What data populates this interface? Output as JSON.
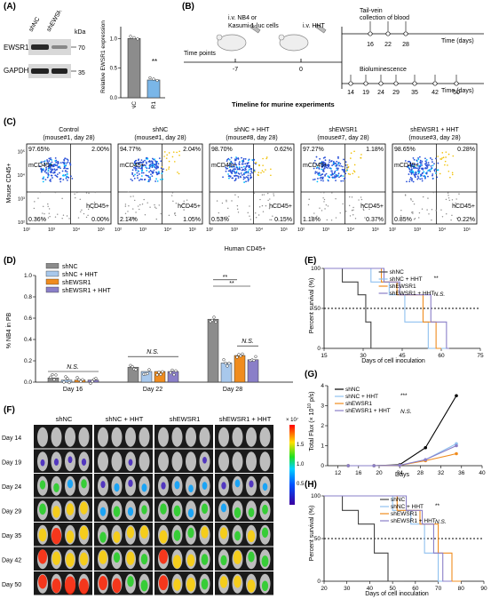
{
  "panel_labels": [
    "(A)",
    "(B)",
    "(C)",
    "(D)",
    "(E)",
    "(F)",
    "(G)",
    "(H)"
  ],
  "panelA": {
    "lanes": [
      "shNC",
      "shEWSR1"
    ],
    "kda_label": "kDa",
    "bands": [
      {
        "name": "EWSR1",
        "kda": "70"
      },
      {
        "name": "GAPDH",
        "kda": "35"
      }
    ],
    "ylabel": "Relative EWSR1 expression",
    "significance": "**"
  },
  "panelB": {
    "injection1": "i.v. NB4 or",
    "injection1b": "Kasumi-1-luc cells",
    "injection2": "i.v. HHT",
    "time_points_label": "Time points",
    "tail_vein_1": "Tail-vein",
    "tail_vein_2": "collection of blood",
    "time_label": "Time (days)",
    "biolum": "Bioluminescence",
    "timeline_caption": "Timeline for murine experiments",
    "left_ticks": [
      "-7",
      "0"
    ],
    "blood_ticks": [
      "16",
      "22",
      "28"
    ],
    "biolum_ticks": [
      "14",
      "19",
      "24",
      "29",
      "35",
      "42",
      "50"
    ]
  },
  "panelC": {
    "ylabel": "Mouse CD45+",
    "xlabel": "Human CD45+",
    "mCD45": "mCD45+",
    "hCD45": "hCD45+",
    "axis_ticks": [
      "10²",
      "10³",
      "10⁴",
      "10⁵"
    ],
    "plots": [
      {
        "title1": "Control",
        "title2": "(mouse#1, day 28)",
        "ul": "97.65%",
        "ur": "2.00%",
        "ll": "0.36%",
        "lr": "0.00%"
      },
      {
        "title1": "shNC",
        "title2": "(mouse#1, day 28)",
        "ul": "94.77%",
        "ur": "2.04%",
        "ll": "2.14%",
        "lr": "1.05%"
      },
      {
        "title1": "shNC + HHT",
        "title2": "(mouse#8, day 28)",
        "ul": "98.70%",
        "ur": "0.62%",
        "ll": "0.53%",
        "lr": "0.15%"
      },
      {
        "title1": "shEWSR1",
        "title2": "(mouse#7, day 28)",
        "ul": "97.27%",
        "ur": "1.18%",
        "ll": "1.18%",
        "lr": "0.37%"
      },
      {
        "title1": "shEWSR1 + HHT",
        "title2": "(mouse#3, day 28)",
        "ul": "98.65%",
        "ur": "0.28%",
        "ll": "0.85%",
        "lr": "0.22%"
      }
    ]
  },
  "panelD": {
    "ylabel": "% NB4 in PB",
    "legend": [
      "shNC",
      "shNC + HHT",
      "shEWSR1",
      "shEWSR1 + HHT"
    ],
    "colors": [
      "#8c8c8c",
      "#a8c8ec",
      "#f08c1e",
      "#8a7fc8"
    ],
    "ns": "N.S.",
    "sig": "**"
  },
  "panelE": {
    "ylabel": "Percent survival (%)",
    "xlabel": "Days of cell inoculation",
    "legend": [
      "shNC",
      "shNC + HHT",
      "shEWSR1",
      "shEWSR1 + HHT"
    ],
    "sig": "**",
    "ns": "N.S."
  },
  "panelF": {
    "cols": [
      "shNC",
      "shNC + HHT",
      "shEWSR1",
      "shEWSR1 + HHT"
    ],
    "rows": [
      "Day 14",
      "Day 19",
      "Day 24",
      "Day 29",
      "Day 35",
      "Day 42",
      "Day 50"
    ],
    "scale_exp": "× 10⁷",
    "scale_ticks": [
      "1.5",
      "1.0",
      "0.5"
    ]
  },
  "panelG": {
    "ylabel_a": "Total Flux (× 10",
    "ylabel_sup": "10",
    "ylabel_b": " p/s)",
    "xlabel": "Days",
    "legend": [
      "shNC",
      "shNC + HHT",
      "shEWSR1",
      "shEWSR1 + HHT"
    ],
    "sig": "***",
    "ns": "N.S."
  },
  "panelH": {
    "ylabel": "Percent survival (%)",
    "xlabel": "Days of cell inoculation",
    "legend": [
      "shNC",
      "shNC + HHT",
      "shEWSR1",
      "shEWSR1 + HHT"
    ],
    "sig": "**",
    "ns": "N.S."
  },
  "chart_data": [
    {
      "type": "bar",
      "id": "A",
      "categories": [
        "shNC",
        "shEWSR1"
      ],
      "values": [
        1.0,
        0.3
      ],
      "ylim": [
        0,
        1.2
      ],
      "yticks": [
        "0.0",
        "0.5",
        "1.0"
      ],
      "colors": [
        "#8c8c8c",
        "#7ab6e8"
      ]
    },
    {
      "type": "bar",
      "id": "D",
      "categories": [
        "Day 16",
        "Day 22",
        "Day 28"
      ],
      "series": [
        {
          "name": "shNC",
          "values": [
            0.04,
            0.14,
            0.59
          ]
        },
        {
          "name": "shNC + HHT",
          "values": [
            0.02,
            0.1,
            0.18
          ]
        },
        {
          "name": "shEWSR1",
          "values": [
            0.02,
            0.1,
            0.25
          ]
        },
        {
          "name": "shEWSR1 + HHT",
          "values": [
            0.02,
            0.1,
            0.21
          ]
        }
      ],
      "ylim": [
        0,
        1.0
      ],
      "yticks": [
        "0.0",
        "0.2",
        "0.4",
        "0.6",
        "0.8",
        "1.0"
      ]
    },
    {
      "type": "line",
      "id": "E",
      "xlim": [
        15,
        75
      ],
      "ylim": [
        0,
        100
      ],
      "xticks": [
        "15",
        "30",
        "45",
        "60",
        "75"
      ],
      "yticks": [
        "0",
        "50",
        "100"
      ],
      "series": [
        {
          "name": "shNC",
          "color": "#444444",
          "x": [
            15,
            22,
            22,
            28,
            28,
            31,
            31,
            33,
            33,
            35
          ],
          "y": [
            100,
            100,
            83,
            83,
            67,
            67,
            33,
            33,
            0,
            0
          ]
        },
        {
          "name": "shNC + HHT",
          "color": "#8fc0ef",
          "x": [
            15,
            33,
            33,
            40,
            40,
            46,
            46,
            55,
            55,
            62
          ],
          "y": [
            100,
            100,
            83,
            83,
            67,
            67,
            33,
            33,
            0,
            0
          ]
        },
        {
          "name": "shEWSR1",
          "color": "#f08c1e",
          "x": [
            15,
            37,
            37,
            43,
            43,
            53,
            53,
            58,
            58,
            60
          ],
          "y": [
            100,
            100,
            83,
            83,
            67,
            67,
            33,
            33,
            0,
            0
          ]
        },
        {
          "name": "shEWSR1 + HHT",
          "color": "#8a7fc8",
          "x": [
            15,
            38,
            38,
            44,
            44,
            56,
            56,
            62,
            62,
            63
          ],
          "y": [
            100,
            100,
            83,
            83,
            67,
            67,
            33,
            33,
            0,
            0
          ]
        }
      ]
    },
    {
      "type": "line",
      "id": "G",
      "xlim": [
        10,
        40
      ],
      "ylim": [
        0,
        4
      ],
      "xticks": [
        "12",
        "16",
        "20",
        "24",
        "28",
        "32",
        "36",
        "40"
      ],
      "yticks": [
        "0",
        "1",
        "2",
        "3",
        "4"
      ],
      "series": [
        {
          "name": "shNC",
          "color": "#000000",
          "x": [
            14,
            19,
            24,
            29,
            35
          ],
          "y": [
            0.0,
            0.0,
            0.05,
            0.9,
            3.5
          ]
        },
        {
          "name": "shNC + HHT",
          "color": "#8fc0ef",
          "x": [
            14,
            19,
            24,
            29,
            35
          ],
          "y": [
            0.0,
            0.0,
            0.02,
            0.3,
            1.1
          ]
        },
        {
          "name": "shEWSR1",
          "color": "#f08c1e",
          "x": [
            14,
            19,
            24,
            29,
            35
          ],
          "y": [
            0.0,
            0.0,
            0.02,
            0.25,
            0.6
          ]
        },
        {
          "name": "shEWSR1 + HHT",
          "color": "#8a7fc8",
          "x": [
            14,
            19,
            24,
            29,
            35
          ],
          "y": [
            0.0,
            0.0,
            0.02,
            0.3,
            1.0
          ]
        }
      ]
    },
    {
      "type": "line",
      "id": "H",
      "xlim": [
        20,
        90
      ],
      "ylim": [
        0,
        100
      ],
      "xticks": [
        "20",
        "30",
        "40",
        "50",
        "60",
        "70",
        "80",
        "90"
      ],
      "yticks": [
        "0",
        "50",
        "100"
      ],
      "series": [
        {
          "name": "shNC",
          "color": "#444444",
          "x": [
            20,
            28,
            28,
            35,
            35,
            42,
            42,
            48,
            48,
            55
          ],
          "y": [
            100,
            100,
            83,
            83,
            67,
            67,
            33,
            33,
            0,
            0
          ]
        },
        {
          "name": "shNC + HHT",
          "color": "#8fc0ef",
          "x": [
            20,
            50,
            50,
            58,
            58,
            64,
            64,
            70,
            70,
            74
          ],
          "y": [
            100,
            100,
            83,
            83,
            67,
            67,
            33,
            33,
            0,
            0
          ]
        },
        {
          "name": "shEWSR1",
          "color": "#f08c1e",
          "x": [
            20,
            52,
            52,
            62,
            62,
            70,
            70,
            76,
            76,
            80
          ],
          "y": [
            100,
            100,
            83,
            83,
            67,
            67,
            33,
            33,
            0,
            0
          ]
        },
        {
          "name": "shEWSR1 + HHT",
          "color": "#8a7fc8",
          "x": [
            20,
            56,
            56,
            63,
            63,
            68,
            68,
            72,
            72,
            76
          ],
          "y": [
            100,
            100,
            83,
            83,
            67,
            67,
            33,
            33,
            0,
            0
          ]
        }
      ]
    }
  ]
}
